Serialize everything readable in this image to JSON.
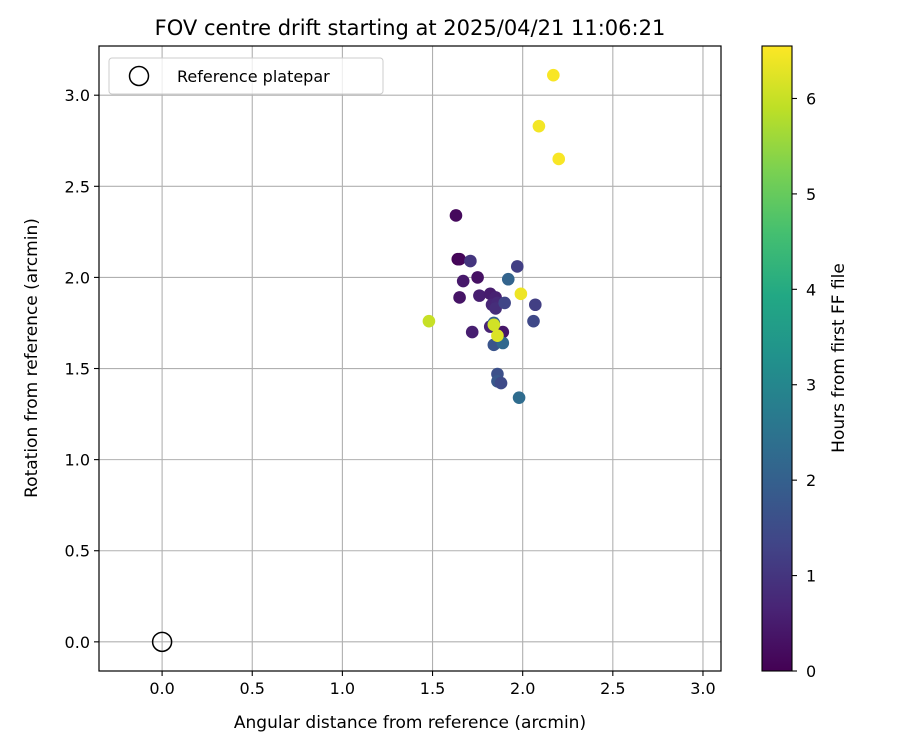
{
  "chart_data": {
    "type": "scatter",
    "title": "FOV centre drift starting at 2025/04/21 11:06:21",
    "xlabel": "Angular distance from reference (arcmin)",
    "ylabel": "Rotation from reference (arcmin)",
    "xlim": [
      -0.35,
      3.1
    ],
    "ylim": [
      -0.16,
      3.27
    ],
    "x_ticks": [
      0.0,
      0.5,
      1.0,
      1.5,
      2.0,
      2.5,
      3.0
    ],
    "x_tick_labels": [
      "0.0",
      "0.5",
      "1.0",
      "1.5",
      "2.0",
      "2.5",
      "3.0"
    ],
    "y_ticks": [
      0.0,
      0.5,
      1.0,
      1.5,
      2.0,
      2.5,
      3.0
    ],
    "y_tick_labels": [
      "0.0",
      "0.5",
      "1.0",
      "1.5",
      "2.0",
      "2.5",
      "3.0"
    ],
    "grid": true,
    "legend": {
      "position": "top-left",
      "entries": [
        {
          "label": "Reference platepar",
          "marker": "open-circle"
        }
      ]
    },
    "reference_point": {
      "x": 0.0,
      "y": 0.0,
      "label": "Reference platepar"
    },
    "colorbar": {
      "label": "Hours from first FF file",
      "colormap": "viridis",
      "range": [
        0,
        6.55
      ],
      "ticks": [
        0,
        1,
        2,
        3,
        4,
        5,
        6
      ],
      "tick_labels": [
        "0",
        "1",
        "2",
        "3",
        "4",
        "5",
        "6"
      ]
    },
    "series": [
      {
        "name": "FOV centre drift",
        "points": [
          {
            "x": 1.63,
            "y": 2.34,
            "c": 0.15
          },
          {
            "x": 1.64,
            "y": 2.1,
            "c": 0.05
          },
          {
            "x": 1.65,
            "y": 2.1,
            "c": 0.1
          },
          {
            "x": 1.71,
            "y": 2.09,
            "c": 1.0
          },
          {
            "x": 1.67,
            "y": 1.98,
            "c": 0.45
          },
          {
            "x": 1.75,
            "y": 2.0,
            "c": 0.3
          },
          {
            "x": 1.65,
            "y": 1.89,
            "c": 0.35
          },
          {
            "x": 1.76,
            "y": 1.9,
            "c": 0.55
          },
          {
            "x": 1.82,
            "y": 1.91,
            "c": 0.5
          },
          {
            "x": 1.85,
            "y": 1.89,
            "c": 0.6
          },
          {
            "x": 1.83,
            "y": 1.85,
            "c": 0.7
          },
          {
            "x": 1.86,
            "y": 1.86,
            "c": 0.75
          },
          {
            "x": 1.85,
            "y": 1.83,
            "c": 0.85
          },
          {
            "x": 1.9,
            "y": 1.86,
            "c": 1.35
          },
          {
            "x": 1.92,
            "y": 1.99,
            "c": 2.1
          },
          {
            "x": 1.97,
            "y": 2.06,
            "c": 1.2
          },
          {
            "x": 2.07,
            "y": 1.85,
            "c": 1.2
          },
          {
            "x": 2.06,
            "y": 1.76,
            "c": 1.4
          },
          {
            "x": 1.72,
            "y": 1.7,
            "c": 0.55
          },
          {
            "x": 1.82,
            "y": 1.73,
            "c": 0.65
          },
          {
            "x": 1.89,
            "y": 1.7,
            "c": 0.4
          },
          {
            "x": 1.84,
            "y": 1.75,
            "c": 2.0
          },
          {
            "x": 1.84,
            "y": 1.63,
            "c": 1.7
          },
          {
            "x": 1.89,
            "y": 1.64,
            "c": 2.2
          },
          {
            "x": 1.86,
            "y": 1.47,
            "c": 1.6
          },
          {
            "x": 1.86,
            "y": 1.43,
            "c": 1.8
          },
          {
            "x": 1.88,
            "y": 1.42,
            "c": 1.45
          },
          {
            "x": 1.98,
            "y": 1.34,
            "c": 2.3
          },
          {
            "x": 1.48,
            "y": 1.76,
            "c": 6.0
          },
          {
            "x": 1.84,
            "y": 1.74,
            "c": 6.1
          },
          {
            "x": 1.86,
            "y": 1.68,
            "c": 6.2
          },
          {
            "x": 1.99,
            "y": 1.91,
            "c": 6.4
          },
          {
            "x": 2.17,
            "y": 3.11,
            "c": 6.5
          },
          {
            "x": 2.09,
            "y": 2.83,
            "c": 6.45
          },
          {
            "x": 2.2,
            "y": 2.65,
            "c": 6.5
          }
        ]
      }
    ]
  }
}
